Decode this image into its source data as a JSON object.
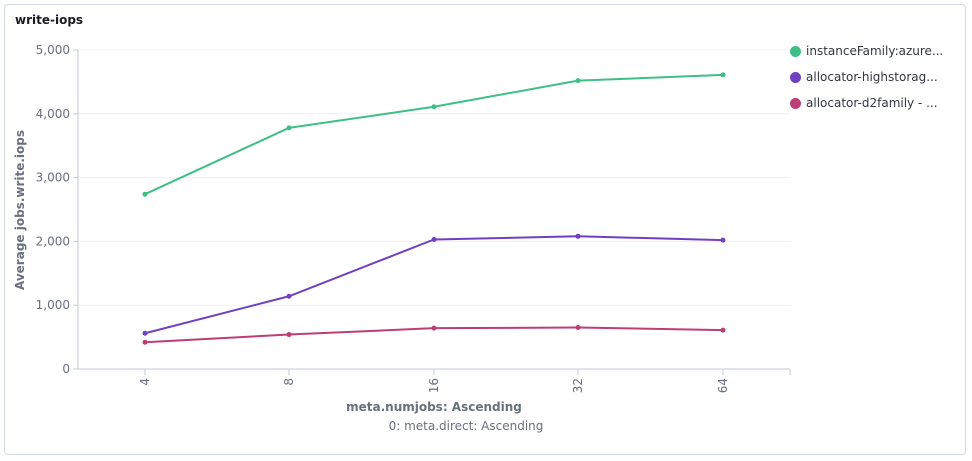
{
  "panel": {
    "title": "write-iops"
  },
  "chart_data": {
    "type": "line",
    "title": "write-iops",
    "xlabel": "meta.numjobs: Ascending",
    "xsublabel": "0: meta.direct: Ascending",
    "ylabel": "Average jobs.write.iops",
    "categories": [
      "4",
      "8",
      "16",
      "32",
      "64"
    ],
    "yticks": [
      "0",
      "1,000",
      "2,000",
      "3,000",
      "4,000",
      "5,000"
    ],
    "ylim": [
      0,
      5000
    ],
    "grid": true,
    "legend_position": "right",
    "series": [
      {
        "name": "instanceFamily:azure...",
        "color": "#3ebf86",
        "values": [
          2740,
          3780,
          4110,
          4520,
          4610
        ]
      },
      {
        "name": "allocator-highstorag...",
        "color": "#7140c2",
        "values": [
          560,
          1140,
          2030,
          2080,
          2020
        ]
      },
      {
        "name": "allocator-d2family - ...",
        "color": "#bd3e76",
        "values": [
          420,
          540,
          640,
          650,
          610
        ]
      }
    ]
  }
}
